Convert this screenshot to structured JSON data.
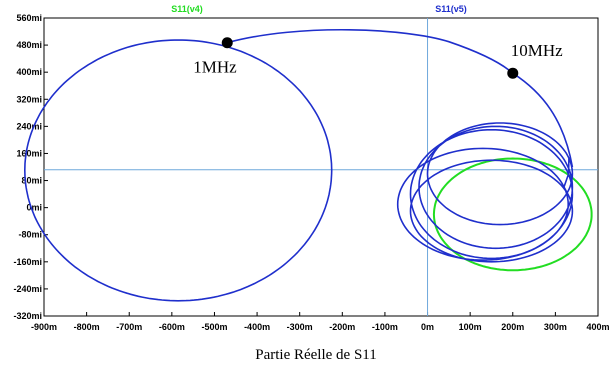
{
  "chart_data": {
    "type": "line",
    "xlabel": "Partie Réelle de S11",
    "ylabel": "",
    "xlim": [
      -0.9,
      0.4
    ],
    "ylim": [
      -0.32,
      0.56
    ],
    "xticks": [
      -0.9,
      -0.8,
      -0.7,
      -0.6,
      -0.5,
      -0.4,
      -0.3,
      -0.2,
      -0.1,
      0,
      0.1,
      0.2,
      0.3,
      0.4
    ],
    "xtick_labels": [
      "-900m",
      "-800m",
      "-700m",
      "-600m",
      "-500m",
      "-400m",
      "-300m",
      "-200m",
      "-100m",
      "0m",
      "100m",
      "200m",
      "300m",
      "400m"
    ],
    "yticks": [
      0.56,
      0.48,
      0.4,
      0.32,
      0.24,
      0.16,
      0.08,
      0,
      -0.08,
      -0.16,
      -0.24,
      -0.32
    ],
    "ytick_labels": [
      "560mi",
      "480mi",
      "400mi",
      "320mi",
      "240mi",
      "160mi",
      "80mi",
      "0mi",
      "-80mi",
      "-160mi",
      "-240mi",
      "-320mi"
    ],
    "grid": false,
    "crosshair": {
      "x": 0.0,
      "y": 0.112,
      "color": "#6fa8dc"
    },
    "series": [
      {
        "name": "S11(v4)",
        "color": "#22dd22",
        "description_points": "circle",
        "center": [
          0.2,
          -0.02
        ],
        "radius": [
          0.185,
          0.165
        ]
      },
      {
        "name": "S11(v5)",
        "color": "#1f2fcc"
      }
    ],
    "annotations": [
      {
        "text": "1MHz",
        "x": -0.47,
        "y": 0.487
      },
      {
        "text": "10MHz",
        "x": 0.2,
        "y": 0.397
      }
    ],
    "markers": [
      {
        "x": -0.47,
        "y": 0.487
      },
      {
        "x": 0.2,
        "y": 0.397
      }
    ]
  }
}
